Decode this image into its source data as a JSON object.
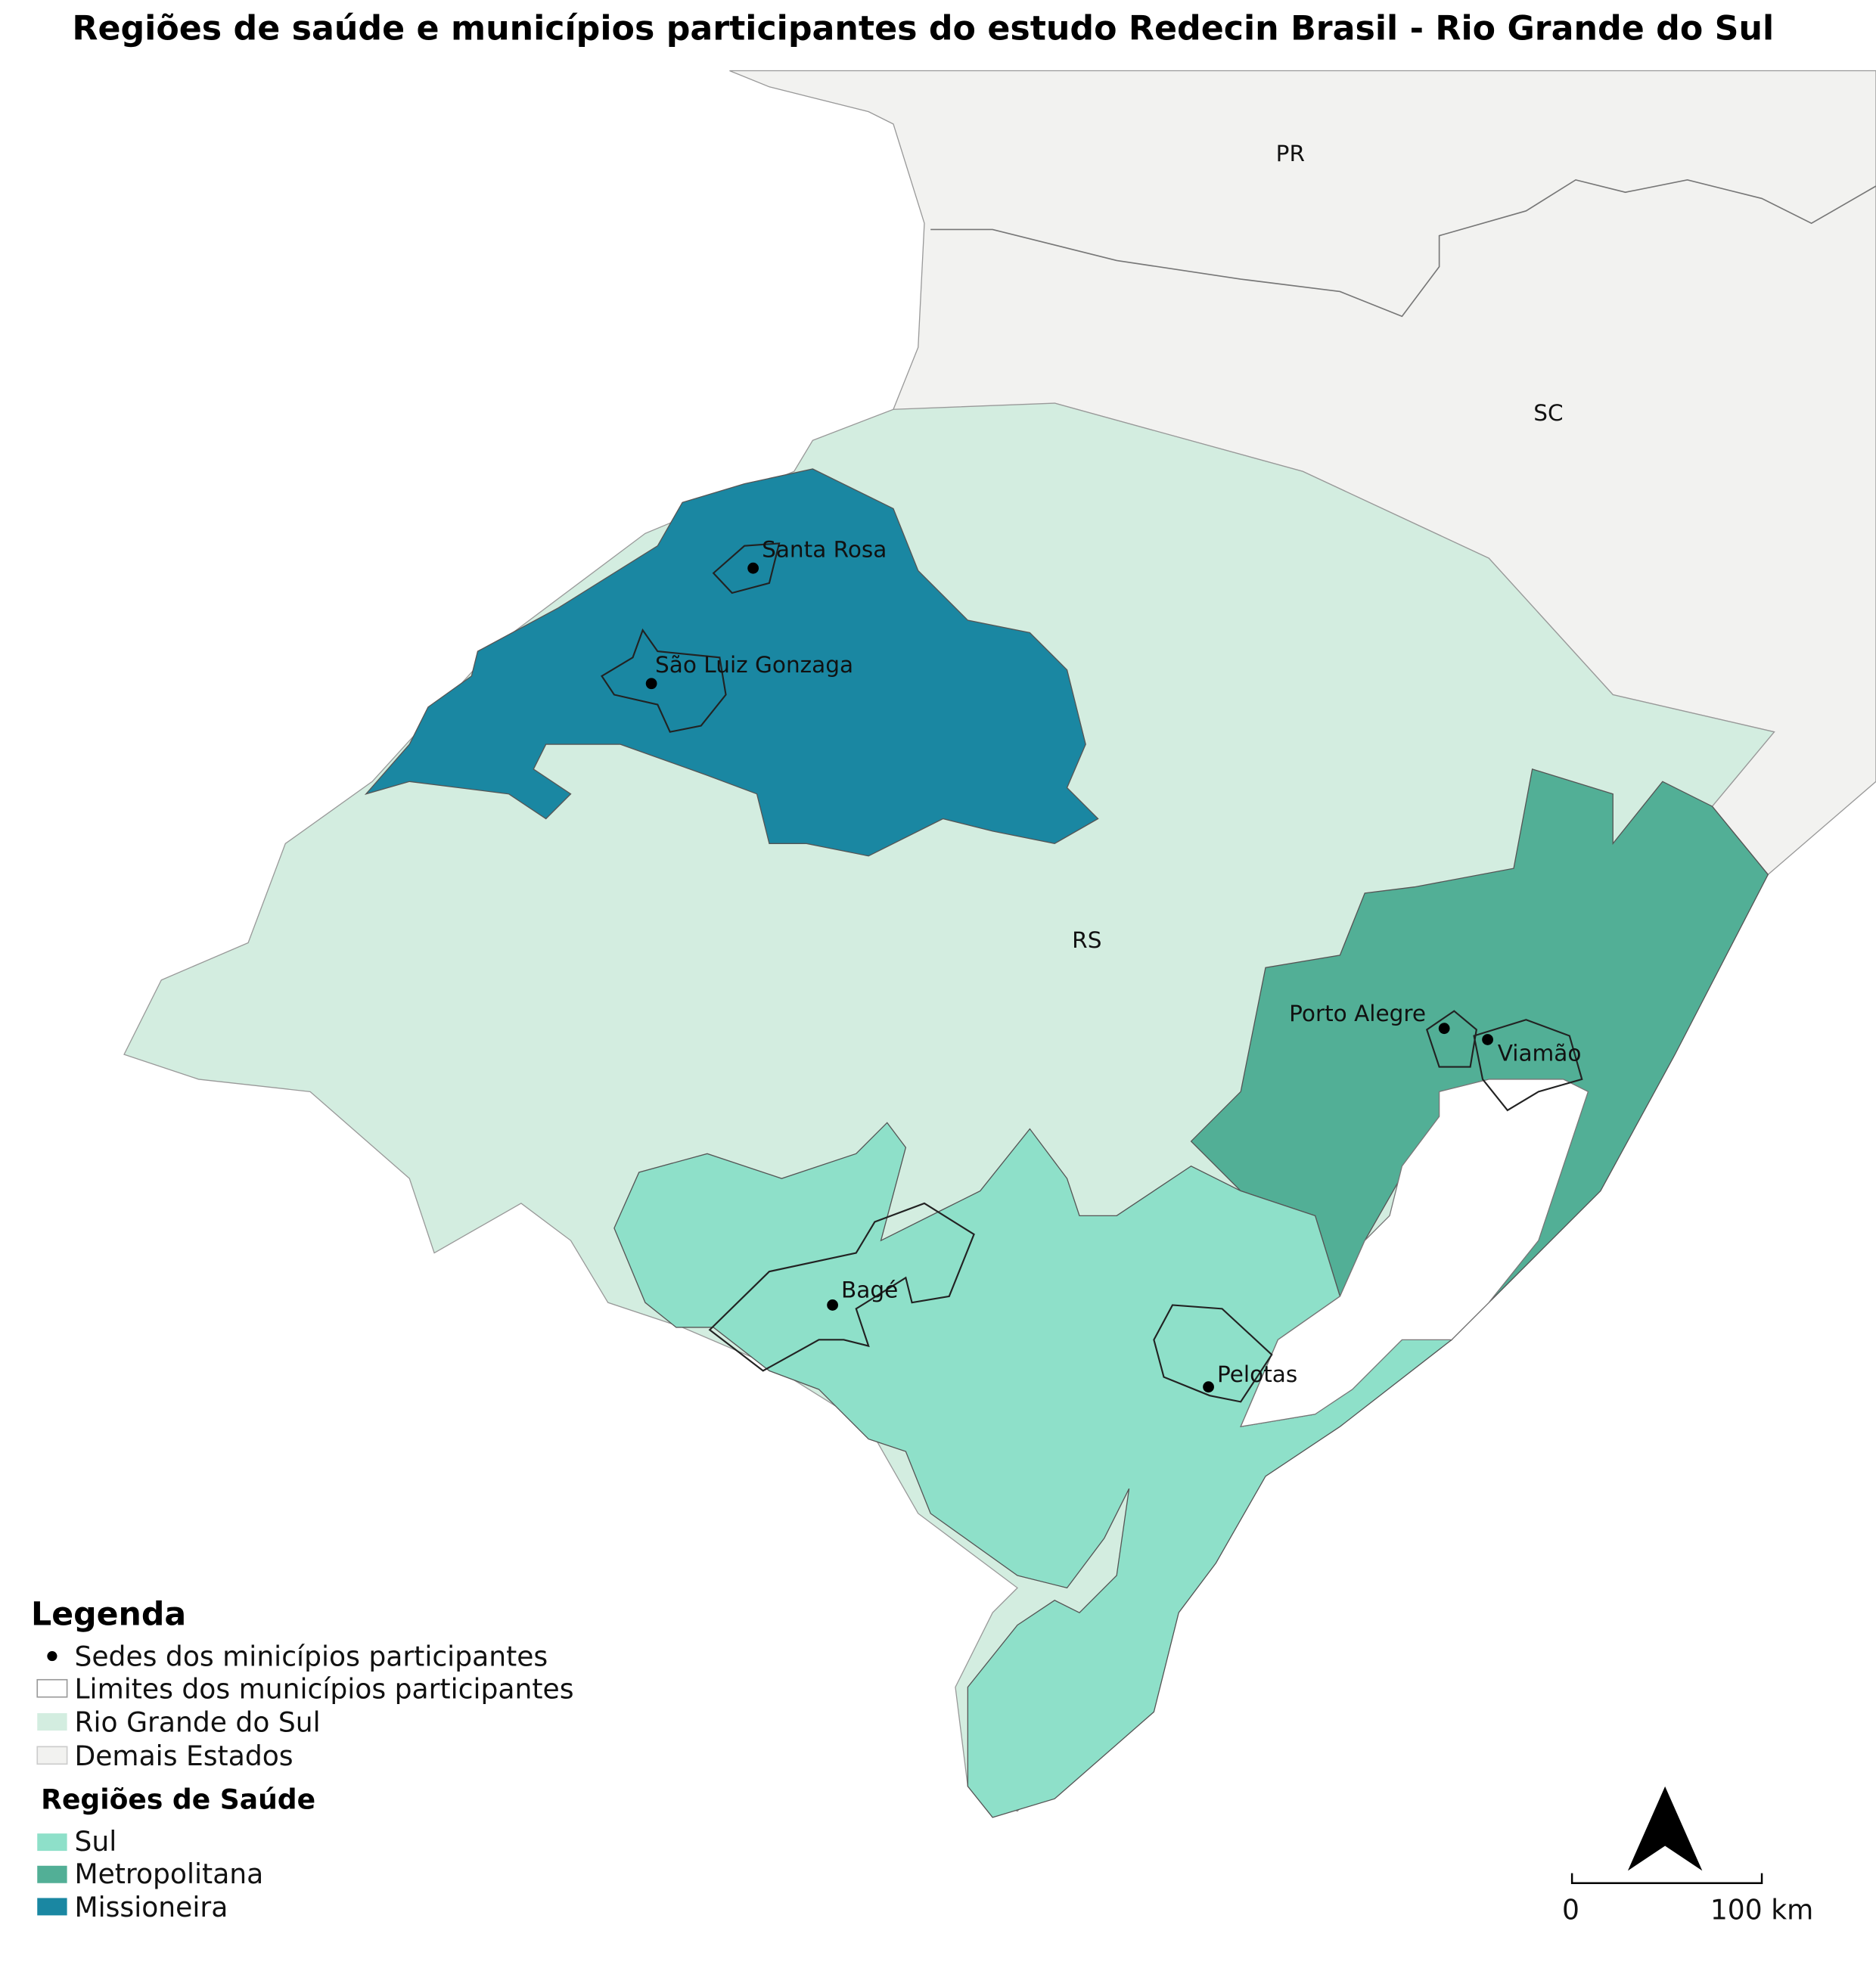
{
  "title": "Regiões de saúde e municípios participantes do estudo Redecin Brasil - Rio Grande do Sul",
  "map": {
    "states": [
      "PR",
      "SC",
      "RS"
    ],
    "cities": [
      "Santa Rosa",
      "São Luiz Gonzaga",
      "Porto Alegre",
      "Viamão",
      "Bagé",
      "Pelotas"
    ]
  },
  "legend": {
    "title": "Legenda",
    "items": [
      {
        "label": "Sedes dos minicípios participantes",
        "color": "#000000"
      },
      {
        "label": "Limites dos municípios participantes",
        "color": "#ffffff"
      },
      {
        "label": "Rio Grande do Sul",
        "color": "#d3ede0"
      },
      {
        "label": "Demais Estados",
        "color": "#f2f2f0"
      }
    ],
    "regions_title": "Regiões de Saúde",
    "regions": [
      {
        "label": "Sul",
        "color": "#8ee0c9"
      },
      {
        "label": "Metropolitana",
        "color": "#52af96"
      },
      {
        "label": "Missioneira",
        "color": "#1a87a2"
      }
    ]
  },
  "scale": [
    "0",
    "100 km"
  ]
}
